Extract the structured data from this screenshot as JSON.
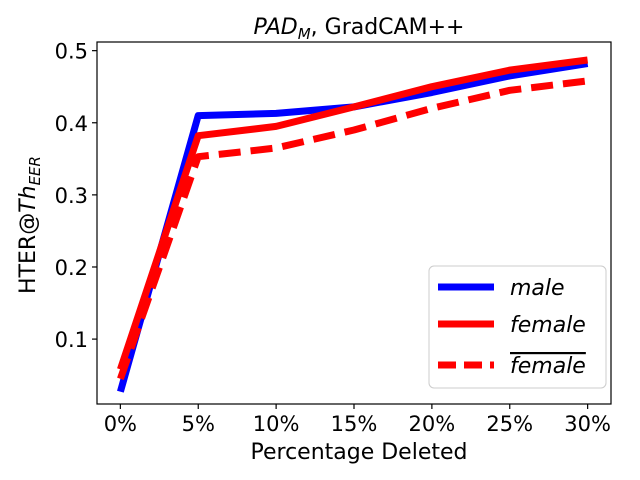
{
  "chart_data": {
    "type": "line",
    "title_italic": "PAD",
    "title_sub": "M",
    "title_rest": ", GradCAM++",
    "ylabel_main": "HTER@",
    "ylabel_italic": "Th",
    "ylabel_sub": "EER",
    "xlabel": "Percentage Deleted",
    "categories": [
      "0%",
      "5%",
      "10%",
      "15%",
      "20%",
      "25%",
      "30%"
    ],
    "x": [
      0,
      5,
      10,
      15,
      20,
      25,
      30
    ],
    "xlim": [
      -1.5,
      31.5
    ],
    "ylim": [
      0.01,
      0.512
    ],
    "yticks": [
      0.1,
      0.2,
      0.3,
      0.4,
      0.5
    ],
    "ytick_labels": [
      "0.1",
      "0.2",
      "0.3",
      "0.4",
      "0.5"
    ],
    "series": [
      {
        "name": "male",
        "color": "#0000ff",
        "dash": "solid",
        "values": [
          0.027,
          0.41,
          0.413,
          0.422,
          0.442,
          0.465,
          0.482
        ]
      },
      {
        "name": "female",
        "color": "#ff0000",
        "dash": "solid",
        "values": [
          0.058,
          0.382,
          0.395,
          0.422,
          0.45,
          0.473,
          0.487
        ]
      },
      {
        "name": "female",
        "overline": true,
        "color": "#ff0000",
        "dash": "dashed",
        "values": [
          0.045,
          0.353,
          0.365,
          0.39,
          0.42,
          0.445,
          0.458
        ]
      }
    ],
    "legend_position": "lower-right"
  }
}
